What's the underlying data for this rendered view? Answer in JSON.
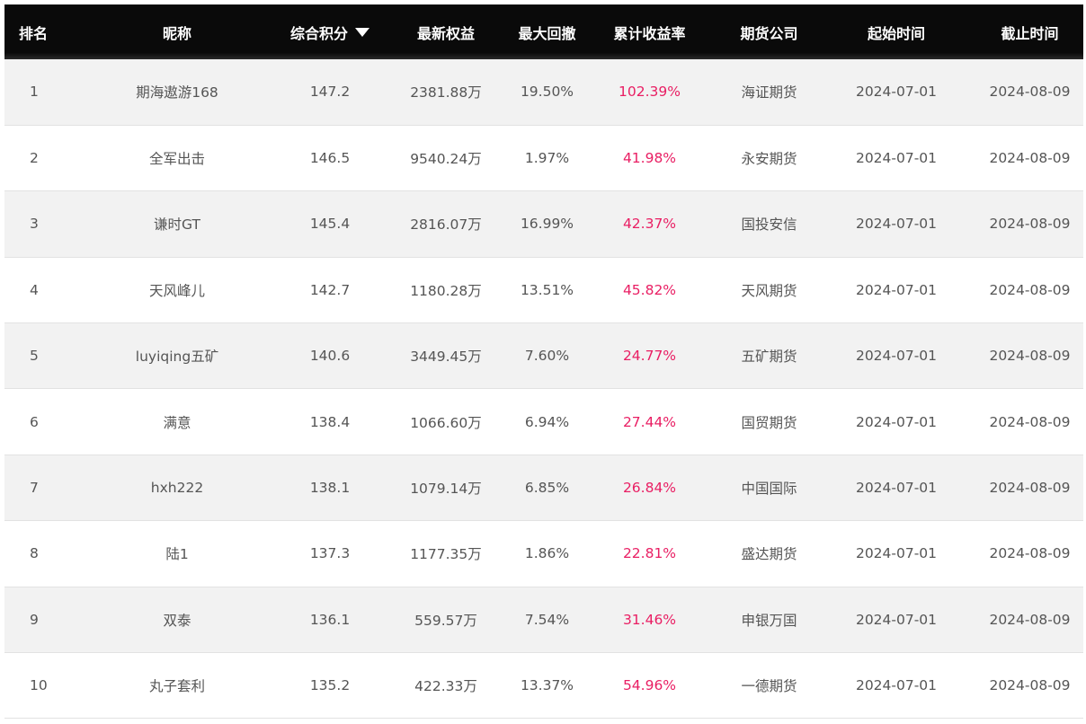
{
  "columns": {
    "rank": "排名",
    "nickname": "昵称",
    "score": "综合积分",
    "equity": "最新权益",
    "drawdown": "最大回撤",
    "return": "累计收益率",
    "company": "期货公司",
    "start": "起始时间",
    "end": "截止时间"
  },
  "sort_icon": "caret-down-icon",
  "colors": {
    "header_bg": "#0a0a0a",
    "return_text": "#e91e63"
  },
  "rows": [
    {
      "rank": "1",
      "nickname": "期海遨游168",
      "score": "147.2",
      "equity": "2381.88万",
      "drawdown": "19.50%",
      "return": "102.39%",
      "company": "海证期货",
      "start": "2024-07-01",
      "end": "2024-08-09"
    },
    {
      "rank": "2",
      "nickname": "全军出击",
      "score": "146.5",
      "equity": "9540.24万",
      "drawdown": "1.97%",
      "return": "41.98%",
      "company": "永安期货",
      "start": "2024-07-01",
      "end": "2024-08-09"
    },
    {
      "rank": "3",
      "nickname": "谦时GT",
      "score": "145.4",
      "equity": "2816.07万",
      "drawdown": "16.99%",
      "return": "42.37%",
      "company": "国投安信",
      "start": "2024-07-01",
      "end": "2024-08-09"
    },
    {
      "rank": "4",
      "nickname": "天风峰儿",
      "score": "142.7",
      "equity": "1180.28万",
      "drawdown": "13.51%",
      "return": "45.82%",
      "company": "天风期货",
      "start": "2024-07-01",
      "end": "2024-08-09"
    },
    {
      "rank": "5",
      "nickname": "luyiqing五矿",
      "score": "140.6",
      "equity": "3449.45万",
      "drawdown": "7.60%",
      "return": "24.77%",
      "company": "五矿期货",
      "start": "2024-07-01",
      "end": "2024-08-09"
    },
    {
      "rank": "6",
      "nickname": "满意",
      "score": "138.4",
      "equity": "1066.60万",
      "drawdown": "6.94%",
      "return": "27.44%",
      "company": "国贸期货",
      "start": "2024-07-01",
      "end": "2024-08-09"
    },
    {
      "rank": "7",
      "nickname": "hxh222",
      "score": "138.1",
      "equity": "1079.14万",
      "drawdown": "6.85%",
      "return": "26.84%",
      "company": "中国国际",
      "start": "2024-07-01",
      "end": "2024-08-09"
    },
    {
      "rank": "8",
      "nickname": "陆1",
      "score": "137.3",
      "equity": "1177.35万",
      "drawdown": "1.86%",
      "return": "22.81%",
      "company": "盛达期货",
      "start": "2024-07-01",
      "end": "2024-08-09"
    },
    {
      "rank": "9",
      "nickname": "双泰",
      "score": "136.1",
      "equity": "559.57万",
      "drawdown": "7.54%",
      "return": "31.46%",
      "company": "申银万国",
      "start": "2024-07-01",
      "end": "2024-08-09"
    },
    {
      "rank": "10",
      "nickname": "丸子套利",
      "score": "135.2",
      "equity": "422.33万",
      "drawdown": "13.37%",
      "return": "54.96%",
      "company": "一德期货",
      "start": "2024-07-01",
      "end": "2024-08-09"
    }
  ]
}
